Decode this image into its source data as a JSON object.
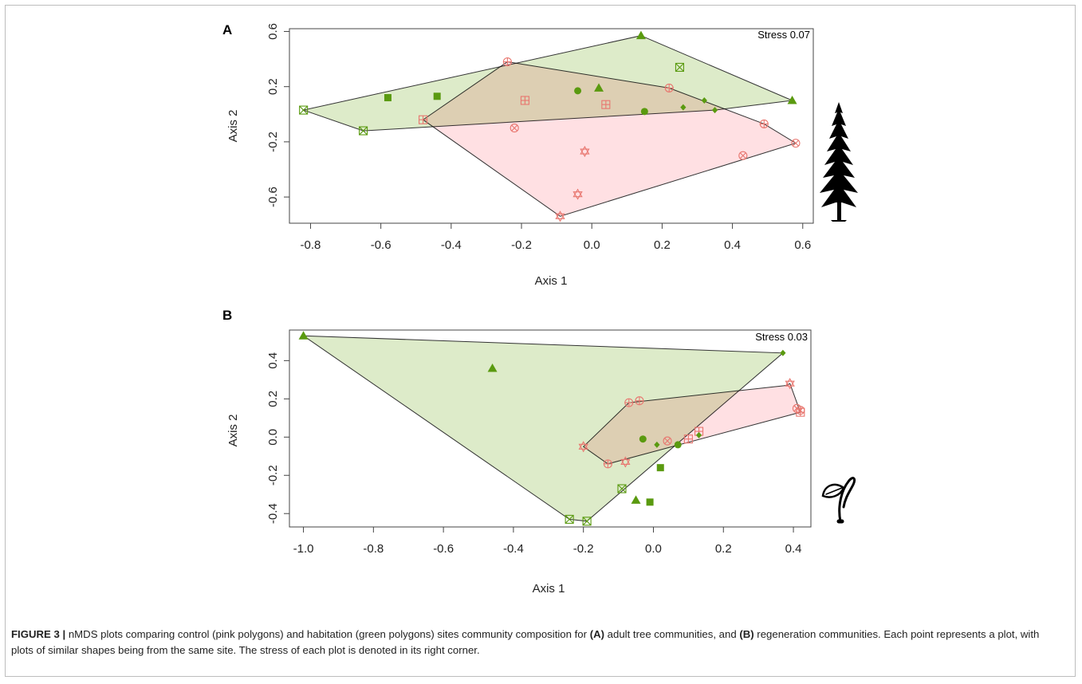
{
  "colors": {
    "control_point": "#e8766f",
    "habitation_point": "#5a9a10",
    "control_fill": "#ffd6d9",
    "habitation_fill": "#d7e7bf",
    "overlap_fill": "#d2c3a6",
    "outline": "#333333"
  },
  "chart_data": [
    {
      "panel": "A",
      "type": "scatter",
      "xlabel": "Axis 1",
      "ylabel": "Axis 2",
      "xlim": [
        -0.86,
        0.63
      ],
      "ylim": [
        -0.79,
        0.62
      ],
      "xticks": [
        -0.8,
        -0.6,
        -0.4,
        -0.2,
        0.0,
        0.2,
        0.4,
        0.6
      ],
      "xtick_labels": [
        "-0.8",
        "-0.6",
        "-0.4",
        "-0.2",
        "0.0",
        "0.2",
        "0.4",
        "0.6"
      ],
      "yticks": [
        -0.6,
        -0.2,
        0.2,
        0.6
      ],
      "ytick_labels": [
        "-0.6",
        "-0.2",
        "0.2",
        "0.6"
      ],
      "annotation": "Stress 0.07",
      "icon": "conifer-tree-icon",
      "series": [
        {
          "group": "control",
          "hull": [
            [
              -0.24,
              0.38
            ],
            [
              0.22,
              0.19
            ],
            [
              0.49,
              -0.07
            ],
            [
              0.58,
              -0.21
            ],
            [
              -0.09,
              -0.74
            ],
            [
              -0.48,
              -0.04
            ]
          ],
          "points": [
            {
              "x": -0.24,
              "y": 0.38,
              "shape": "circle-plus"
            },
            {
              "x": 0.22,
              "y": 0.19,
              "shape": "circle-plus"
            },
            {
              "x": 0.49,
              "y": -0.07,
              "shape": "circle-plus"
            },
            {
              "x": -0.19,
              "y": 0.1,
              "shape": "square-plus"
            },
            {
              "x": 0.04,
              "y": 0.07,
              "shape": "square-plus"
            },
            {
              "x": -0.48,
              "y": -0.04,
              "shape": "square-plus"
            },
            {
              "x": -0.22,
              "y": -0.1,
              "shape": "circle-cross"
            },
            {
              "x": 0.43,
              "y": -0.3,
              "shape": "circle-cross"
            },
            {
              "x": 0.58,
              "y": -0.21,
              "shape": "circle-cross"
            },
            {
              "x": -0.02,
              "y": -0.27,
              "shape": "star-of-david"
            },
            {
              "x": -0.04,
              "y": -0.58,
              "shape": "star-of-david"
            },
            {
              "x": -0.09,
              "y": -0.74,
              "shape": "star-of-david"
            }
          ]
        },
        {
          "group": "habitation",
          "hull": [
            [
              0.14,
              0.57
            ],
            [
              0.57,
              0.1
            ],
            [
              0.35,
              0.03
            ],
            [
              -0.65,
              -0.12
            ],
            [
              -0.82,
              0.03
            ]
          ],
          "points": [
            {
              "x": 0.14,
              "y": 0.57,
              "shape": "triangle"
            },
            {
              "x": 0.57,
              "y": 0.1,
              "shape": "triangle"
            },
            {
              "x": 0.02,
              "y": 0.19,
              "shape": "triangle"
            },
            {
              "x": -0.58,
              "y": 0.12,
              "shape": "square"
            },
            {
              "x": -0.44,
              "y": 0.13,
              "shape": "square"
            },
            {
              "x": -0.04,
              "y": 0.17,
              "shape": "circle"
            },
            {
              "x": 0.15,
              "y": 0.02,
              "shape": "circle"
            },
            {
              "x": 0.32,
              "y": 0.1,
              "shape": "diamond"
            },
            {
              "x": 0.26,
              "y": 0.05,
              "shape": "diamond"
            },
            {
              "x": 0.35,
              "y": 0.03,
              "shape": "diamond"
            },
            {
              "x": 0.25,
              "y": 0.34,
              "shape": "square-x"
            },
            {
              "x": -0.82,
              "y": 0.03,
              "shape": "square-x"
            },
            {
              "x": -0.65,
              "y": -0.12,
              "shape": "square-x"
            }
          ]
        }
      ]
    },
    {
      "panel": "B",
      "type": "scatter",
      "xlabel": "Axis 1",
      "ylabel": "Axis 2",
      "xlim": [
        -1.04,
        0.45
      ],
      "ylim": [
        -0.47,
        0.56
      ],
      "xticks": [
        -1.0,
        -0.8,
        -0.6,
        -0.4,
        -0.2,
        0.0,
        0.2,
        0.4
      ],
      "xtick_labels": [
        "-1.0",
        "-0.8",
        "-0.6",
        "-0.4",
        "-0.2",
        "0.0",
        "0.2",
        "0.4"
      ],
      "yticks": [
        -0.4,
        -0.2,
        0.0,
        0.2,
        0.4
      ],
      "ytick_labels": [
        "-0.4",
        "-0.2",
        "0.0",
        "0.2",
        "0.4"
      ],
      "annotation": "Stress 0.03",
      "icon": "seedling-icon",
      "series": [
        {
          "group": "control",
          "hull": [
            [
              -0.07,
              0.18
            ],
            [
              0.38,
              0.27
            ],
            [
              0.39,
              0.28
            ],
            [
              0.42,
              0.13
            ],
            [
              -0.13,
              -0.14
            ],
            [
              -0.2,
              -0.05
            ]
          ],
          "points": [
            {
              "x": -0.07,
              "y": 0.18,
              "shape": "circle-plus"
            },
            {
              "x": -0.04,
              "y": 0.19,
              "shape": "circle-plus"
            },
            {
              "x": -0.13,
              "y": -0.14,
              "shape": "circle-plus"
            },
            {
              "x": 0.1,
              "y": -0.01,
              "shape": "square-plus"
            },
            {
              "x": 0.13,
              "y": 0.03,
              "shape": "square-plus"
            },
            {
              "x": 0.42,
              "y": 0.13,
              "shape": "square-plus"
            },
            {
              "x": 0.04,
              "y": -0.02,
              "shape": "circle-cross"
            },
            {
              "x": 0.41,
              "y": 0.15,
              "shape": "circle-cross"
            },
            {
              "x": 0.42,
              "y": 0.14,
              "shape": "circle-cross"
            },
            {
              "x": -0.2,
              "y": -0.05,
              "shape": "star-of-david"
            },
            {
              "x": -0.08,
              "y": -0.13,
              "shape": "star-of-david"
            },
            {
              "x": 0.39,
              "y": 0.28,
              "shape": "star-of-david"
            }
          ]
        },
        {
          "group": "habitation",
          "hull": [
            [
              -1.0,
              0.53
            ],
            [
              0.37,
              0.44
            ],
            [
              -0.19,
              -0.44
            ],
            [
              -0.24,
              -0.43
            ]
          ],
          "points": [
            {
              "x": -1.0,
              "y": 0.53,
              "shape": "triangle"
            },
            {
              "x": -0.46,
              "y": 0.36,
              "shape": "triangle"
            },
            {
              "x": -0.05,
              "y": -0.33,
              "shape": "triangle"
            },
            {
              "x": 0.02,
              "y": -0.16,
              "shape": "square"
            },
            {
              "x": -0.01,
              "y": -0.34,
              "shape": "square"
            },
            {
              "x": -0.03,
              "y": -0.01,
              "shape": "circle"
            },
            {
              "x": 0.07,
              "y": -0.04,
              "shape": "circle"
            },
            {
              "x": 0.01,
              "y": -0.04,
              "shape": "diamond"
            },
            {
              "x": 0.13,
              "y": 0.01,
              "shape": "diamond"
            },
            {
              "x": 0.37,
              "y": 0.44,
              "shape": "diamond"
            },
            {
              "x": -0.09,
              "y": -0.27,
              "shape": "square-x"
            },
            {
              "x": -0.24,
              "y": -0.43,
              "shape": "square-x"
            },
            {
              "x": -0.19,
              "y": -0.44,
              "shape": "square-x"
            }
          ]
        }
      ]
    }
  ],
  "caption": {
    "label": "FIGURE 3 |",
    "part1": " nMDS plots comparing control (pink polygons) and habitation (green polygons) sites community composition for ",
    "ref_a": "(A)",
    "part2": " adult tree communities, and ",
    "ref_b": "(B)",
    "part3": " regeneration communities. Each point represents a plot, with plots of similar shapes being from the same site. The stress of each plot is denoted in its right corner."
  }
}
